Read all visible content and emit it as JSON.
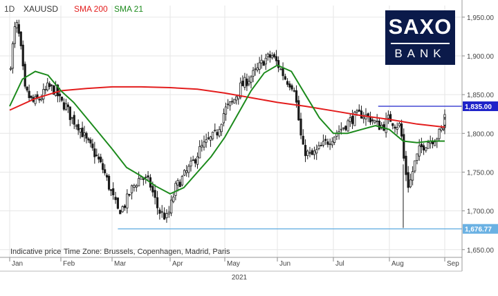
{
  "header": {
    "timeframe": "1D",
    "symbol": "XAUUSD",
    "sma200_label": "SMA 200",
    "sma21_label": "SMA 21"
  },
  "logo": {
    "line1": "SAXO",
    "line2": "BANK"
  },
  "footer": {
    "price_note": "Indicative price",
    "timezone": "Time Zone: Brussels, Copenhagen, Madrid, Paris"
  },
  "colors": {
    "sma200": "#e31c1c",
    "sma21": "#1c8a1c",
    "resistance": "#1f23c9",
    "support": "#6ab1e3",
    "candles": "#1a1a1a"
  },
  "chart_data": {
    "type": "candlestick",
    "instrument": "XAUUSD",
    "timeframe": "1D",
    "year_label": "2021",
    "months": [
      "Jan",
      "Feb",
      "Mar",
      "Apr",
      "May",
      "Jun",
      "Jul",
      "Aug",
      "Sep"
    ],
    "y_ticks": [
      "1,950.00",
      "1,900.00",
      "1,850.00",
      "1,800.00",
      "1,750.00",
      "1,700.00",
      "1,650.00"
    ],
    "ylim": [
      1640,
      1965
    ],
    "grid": true,
    "horizontal_levels": [
      {
        "label": "1,835.00",
        "value": 1835.0,
        "color": "#1f23c9",
        "from_month": 6.8
      },
      {
        "label": "1,676.77",
        "value": 1676.77,
        "color": "#6ab1e3",
        "from_month": 2.1
      }
    ],
    "close_path": [
      [
        0.0,
        1880
      ],
      [
        0.12,
        1945
      ],
      [
        0.2,
        1920
      ],
      [
        0.3,
        1855
      ],
      [
        0.45,
        1840
      ],
      [
        0.6,
        1845
      ],
      [
        0.75,
        1860
      ],
      [
        0.9,
        1855
      ],
      [
        1.0,
        1840
      ],
      [
        1.1,
        1835
      ],
      [
        1.2,
        1820
      ],
      [
        1.35,
        1810
      ],
      [
        1.5,
        1790
      ],
      [
        1.7,
        1770
      ],
      [
        1.85,
        1750
      ],
      [
        2.0,
        1720
      ],
      [
        2.1,
        1700
      ],
      [
        2.2,
        1705
      ],
      [
        2.35,
        1730
      ],
      [
        2.5,
        1745
      ],
      [
        2.65,
        1735
      ],
      [
        2.8,
        1700
      ],
      [
        2.95,
        1690
      ],
      [
        3.1,
        1730
      ],
      [
        3.25,
        1745
      ],
      [
        3.4,
        1760
      ],
      [
        3.55,
        1780
      ],
      [
        3.7,
        1790
      ],
      [
        3.85,
        1800
      ],
      [
        4.0,
        1830
      ],
      [
        4.15,
        1840
      ],
      [
        4.3,
        1860
      ],
      [
        4.45,
        1870
      ],
      [
        4.6,
        1880
      ],
      [
        4.75,
        1895
      ],
      [
        4.9,
        1900
      ],
      [
        5.0,
        1890
      ],
      [
        5.15,
        1870
      ],
      [
        5.3,
        1860
      ],
      [
        5.45,
        1780
      ],
      [
        5.6,
        1770
      ],
      [
        5.75,
        1780
      ],
      [
        5.9,
        1790
      ],
      [
        6.05,
        1800
      ],
      [
        6.2,
        1810
      ],
      [
        6.35,
        1820
      ],
      [
        6.5,
        1825
      ],
      [
        6.65,
        1820
      ],
      [
        6.8,
        1810
      ],
      [
        6.9,
        1810
      ],
      [
        7.0,
        1820
      ],
      [
        7.1,
        1812
      ],
      [
        7.2,
        1810
      ],
      [
        7.27,
        1760
      ],
      [
        7.35,
        1730
      ],
      [
        7.45,
        1760
      ],
      [
        7.55,
        1780
      ],
      [
        7.7,
        1790
      ],
      [
        7.85,
        1795
      ],
      [
        8.0,
        1810
      ],
      [
        8.1,
        1820
      ],
      [
        8.15,
        1830
      ]
    ],
    "series": [
      {
        "name": "SMA 200",
        "color": "#e31c1c",
        "points": [
          [
            0,
            1830
          ],
          [
            0.5,
            1845
          ],
          [
            1.0,
            1855
          ],
          [
            1.5,
            1858
          ],
          [
            2.0,
            1860
          ],
          [
            2.5,
            1860
          ],
          [
            3.0,
            1859
          ],
          [
            3.5,
            1857
          ],
          [
            4.0,
            1852
          ],
          [
            4.5,
            1846
          ],
          [
            5.0,
            1840
          ],
          [
            5.5,
            1835
          ],
          [
            6.0,
            1829
          ],
          [
            6.5,
            1823
          ],
          [
            7.0,
            1818
          ],
          [
            7.5,
            1812
          ],
          [
            8.0,
            1808
          ]
        ]
      },
      {
        "name": "SMA 21",
        "color": "#1c8a1c",
        "points": [
          [
            0,
            1835
          ],
          [
            0.25,
            1870
          ],
          [
            0.5,
            1880
          ],
          [
            0.75,
            1875
          ],
          [
            1.0,
            1855
          ],
          [
            1.25,
            1840
          ],
          [
            1.5,
            1820
          ],
          [
            1.75,
            1800
          ],
          [
            2.0,
            1780
          ],
          [
            2.25,
            1756
          ],
          [
            2.5,
            1745
          ],
          [
            2.75,
            1732
          ],
          [
            3.0,
            1722
          ],
          [
            3.25,
            1730
          ],
          [
            3.5,
            1750
          ],
          [
            3.75,
            1770
          ],
          [
            4.0,
            1795
          ],
          [
            4.25,
            1825
          ],
          [
            4.5,
            1855
          ],
          [
            4.75,
            1878
          ],
          [
            5.0,
            1888
          ],
          [
            5.25,
            1880
          ],
          [
            5.5,
            1850
          ],
          [
            5.75,
            1820
          ],
          [
            6.0,
            1800
          ],
          [
            6.25,
            1800
          ],
          [
            6.5,
            1805
          ],
          [
            6.75,
            1810
          ],
          [
            7.0,
            1805
          ],
          [
            7.25,
            1790
          ],
          [
            7.5,
            1788
          ],
          [
            7.75,
            1790
          ],
          [
            8.0,
            1790
          ],
          [
            8.15,
            1790
          ]
        ]
      }
    ]
  }
}
